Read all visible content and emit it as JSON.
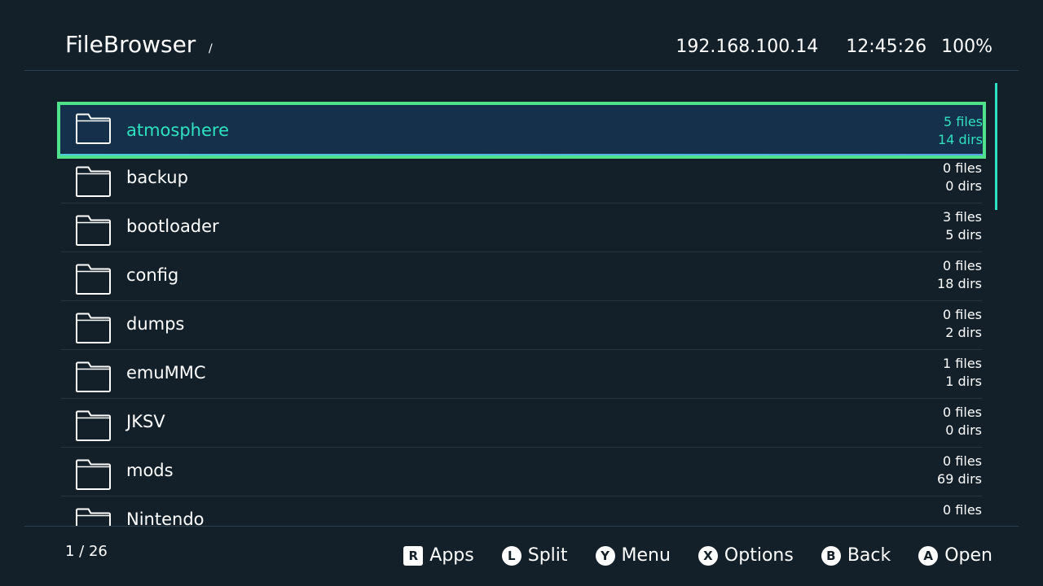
{
  "header": {
    "title": "FileBrowser",
    "path": "/",
    "ip": "192.168.100.14",
    "time": "12:45:26",
    "battery": "100%"
  },
  "list": {
    "selected_index": 0,
    "items": [
      {
        "name": "atmosphere",
        "files": "5 files",
        "dirs": "14 dirs",
        "icon": "folder-icon"
      },
      {
        "name": "backup",
        "files": "0 files",
        "dirs": "0 dirs",
        "icon": "folder-icon"
      },
      {
        "name": "bootloader",
        "files": "3 files",
        "dirs": "5 dirs",
        "icon": "folder-icon"
      },
      {
        "name": "config",
        "files": "0 files",
        "dirs": "18 dirs",
        "icon": "folder-icon"
      },
      {
        "name": "dumps",
        "files": "0 files",
        "dirs": "2 dirs",
        "icon": "folder-icon"
      },
      {
        "name": "emuMMC",
        "files": "1 files",
        "dirs": "1 dirs",
        "icon": "folder-icon"
      },
      {
        "name": "JKSV",
        "files": "0 files",
        "dirs": "0 dirs",
        "icon": "folder-icon"
      },
      {
        "name": "mods",
        "files": "0 files",
        "dirs": "69 dirs",
        "icon": "folder-icon"
      },
      {
        "name": "Nintendo",
        "files": "0 files",
        "icon": "folder-icon"
      }
    ]
  },
  "footer": {
    "page": "1 / 26",
    "buttons": [
      {
        "key": "R",
        "label": "Apps"
      },
      {
        "key": "L",
        "label": "Split"
      },
      {
        "key": "Y",
        "label": "Menu"
      },
      {
        "key": "X",
        "label": "Options"
      },
      {
        "key": "B",
        "label": "Back"
      },
      {
        "key": "A",
        "label": "Open"
      }
    ]
  },
  "colors": {
    "background": "#142029",
    "accent": "#2ee1c0",
    "selection_border": "#4fe28a"
  }
}
